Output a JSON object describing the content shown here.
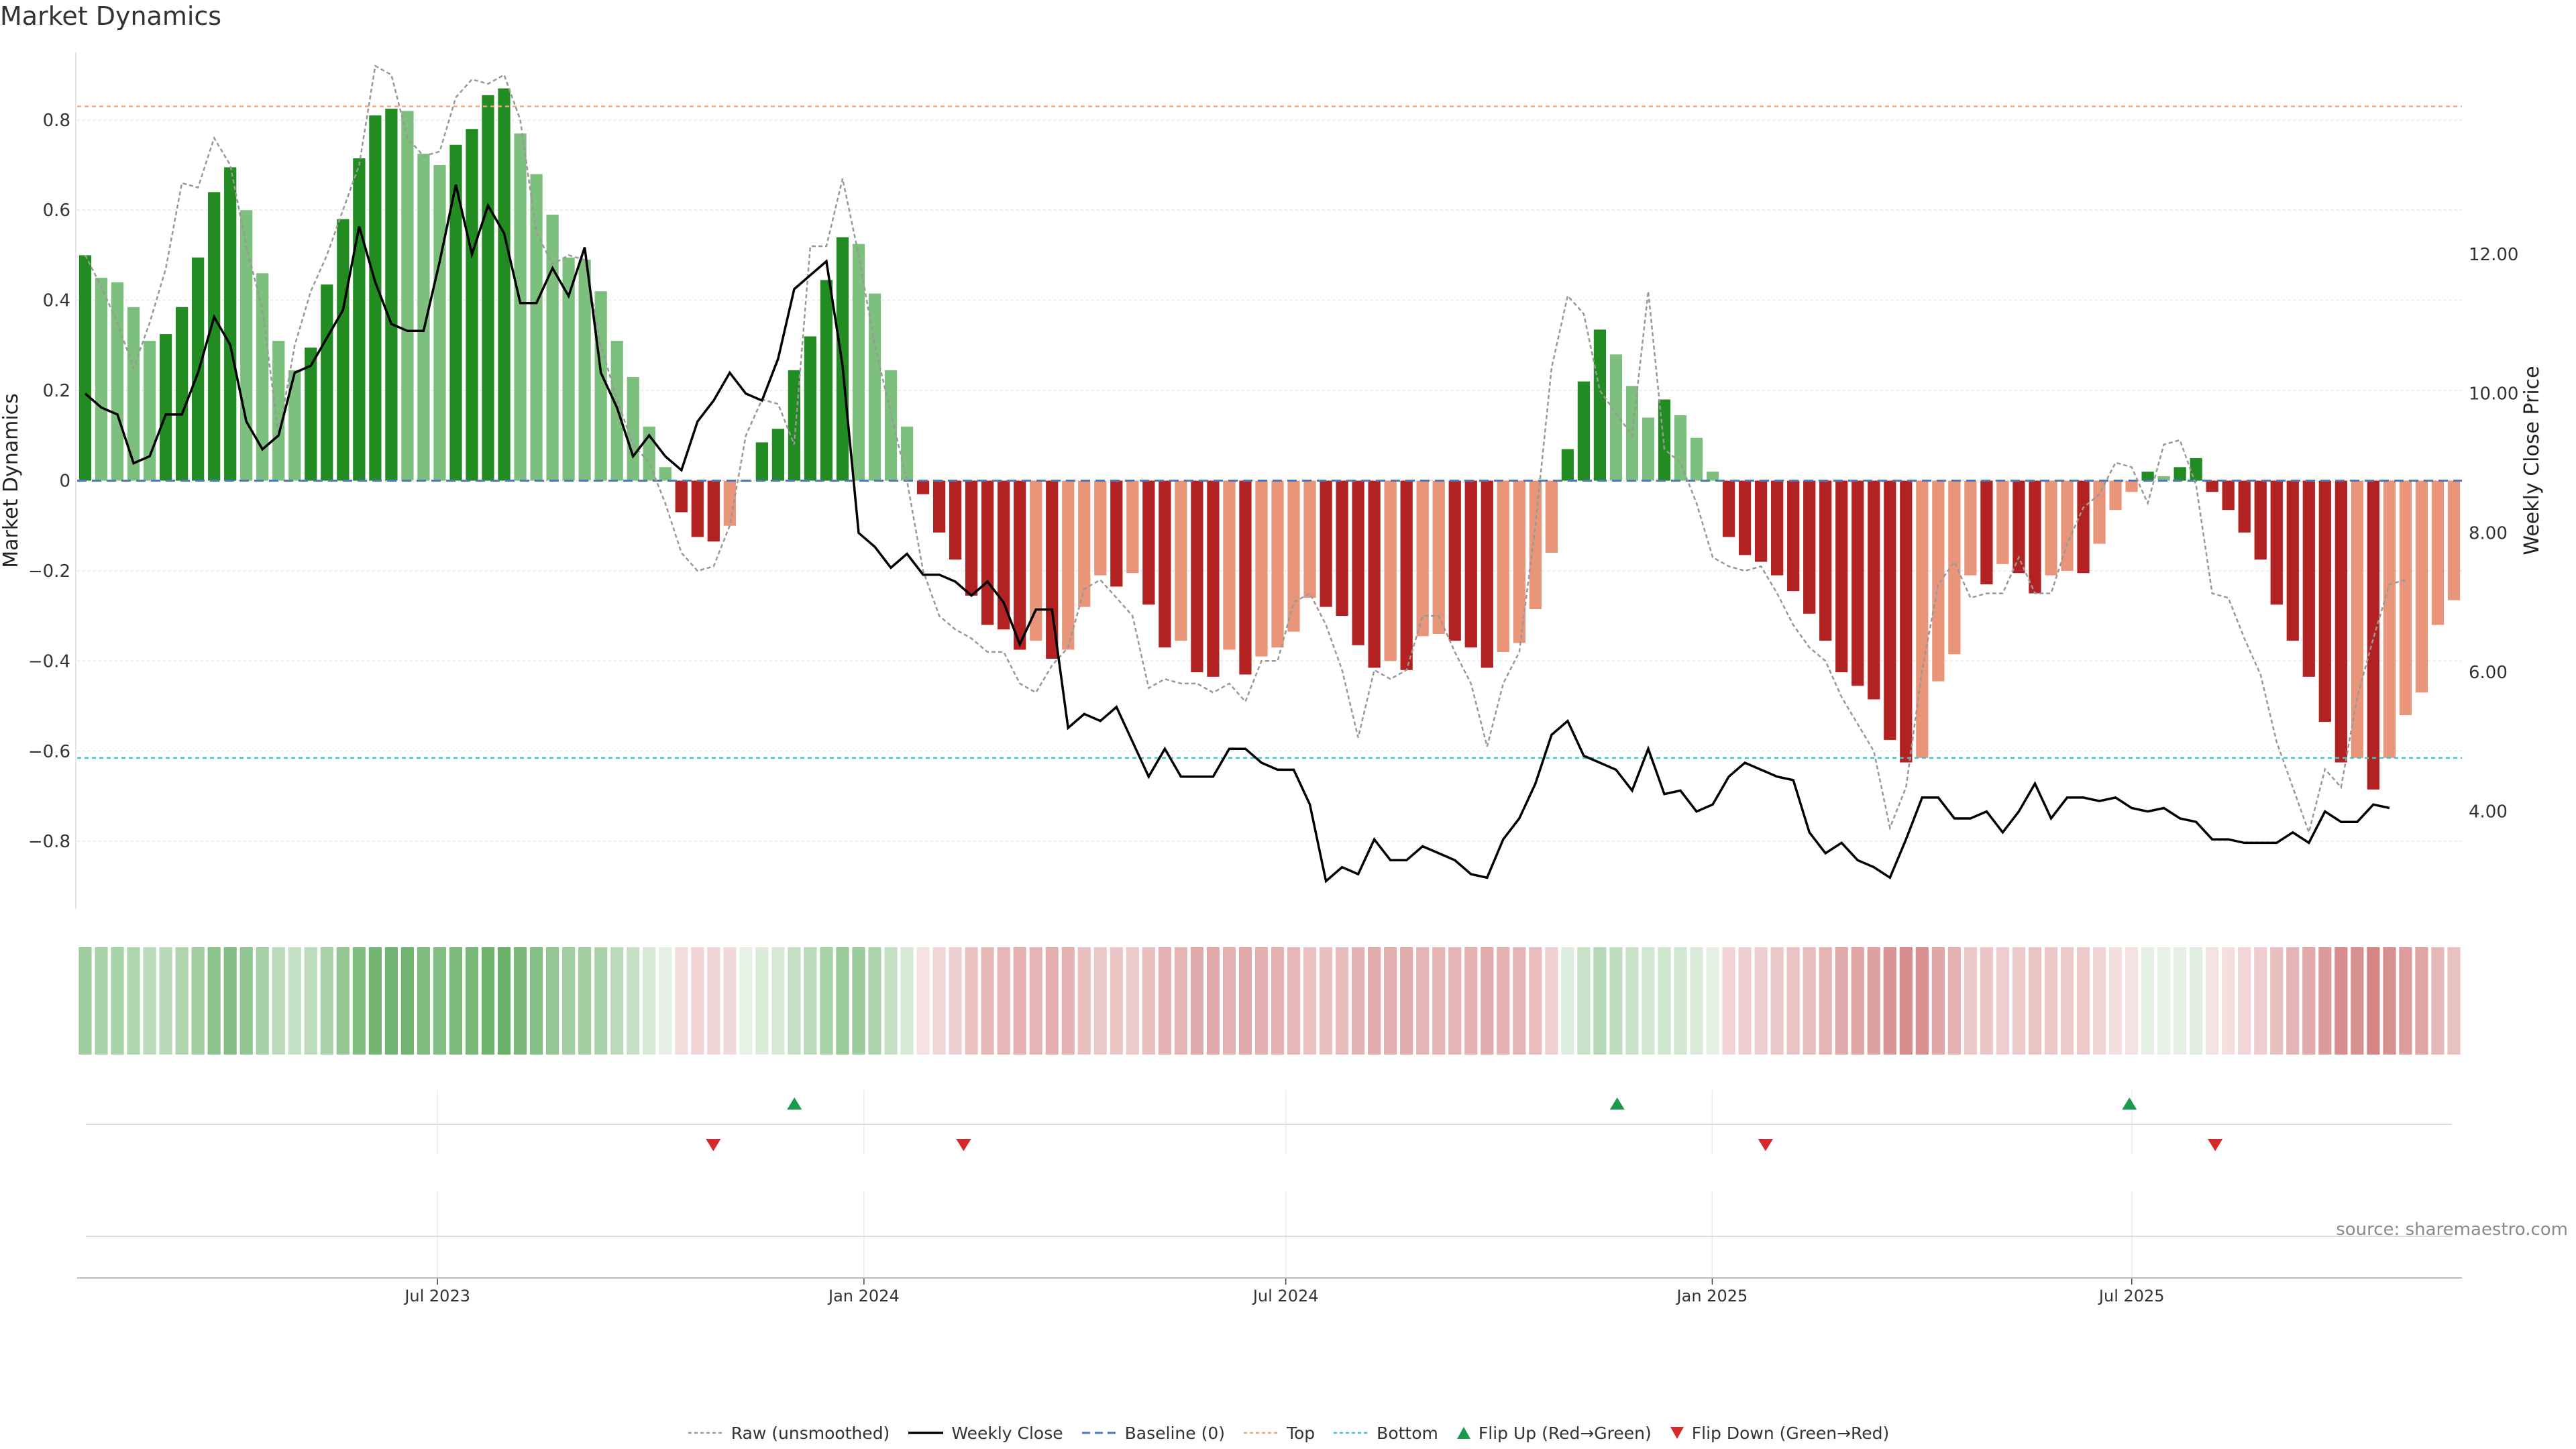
{
  "title": "Market Dynamics",
  "source_note": "source: sharemaestro.com",
  "colors": {
    "strong_green": "#228b22",
    "light_green": "#7dbf7d",
    "strong_red": "#b22222",
    "light_red": "#e8957a",
    "top_line": "#f4a582",
    "bottom_line": "#3cc8d2",
    "baseline": "#4a78c2",
    "raw": "#999999",
    "close": "#000000",
    "flip_up": "#1a9a4a",
    "flip_down": "#d42a2a"
  },
  "legend": [
    {
      "key": "raw",
      "label": "Raw (unsmoothed)"
    },
    {
      "key": "close",
      "label": "Weekly Close"
    },
    {
      "key": "baseline",
      "label": "Baseline (0)"
    },
    {
      "key": "top",
      "label": "Top"
    },
    {
      "key": "bottom",
      "label": "Bottom"
    },
    {
      "key": "flip_up",
      "label": "Flip Up (Red→Green)"
    },
    {
      "key": "flip_down",
      "label": "Flip Down (Green→Red)"
    }
  ],
  "chart_data": {
    "type": "bar",
    "title": "Market Dynamics",
    "ylabel": "Market Dynamics",
    "y2label": "Weekly Close Price",
    "ylim": [
      -0.95,
      0.95
    ],
    "y2lim": [
      2.6,
      14.9
    ],
    "yticks": [
      -0.8,
      -0.6,
      -0.4,
      -0.2,
      0,
      0.2,
      0.4,
      0.6,
      0.8
    ],
    "ytick_labels": [
      "−0.8",
      "−0.6",
      "−0.4",
      "−0.2",
      "0",
      "0.2",
      "0.4",
      "0.6",
      "0.8"
    ],
    "y2ticks": [
      4,
      6,
      8,
      10,
      12
    ],
    "y2tick_labels": [
      "4.00",
      "6.00",
      "8.00",
      "10.00",
      "12.00"
    ],
    "x_start": "2023-01-30",
    "x_end": "2025-11-17",
    "xticks": [
      "2023-07-01",
      "2024-01-01",
      "2024-07-01",
      "2025-01-01",
      "2025-07-01"
    ],
    "xtick_labels": [
      "Jul 2023",
      "Jan 2024",
      "Jul 2024",
      "Jan 2025",
      "Jul 2025"
    ],
    "top_level": 0.83,
    "bottom_level": -0.615,
    "grid": true,
    "legend_position": "bottom",
    "smoothed": [
      0.5,
      0.45,
      0.44,
      0.385,
      0.31,
      0.325,
      0.385,
      0.495,
      0.64,
      0.695,
      0.6,
      0.46,
      0.31,
      0.245,
      0.295,
      0.435,
      0.58,
      0.715,
      0.81,
      0.825,
      0.82,
      0.725,
      0.7,
      0.745,
      0.78,
      0.855,
      0.87,
      0.77,
      0.68,
      0.59,
      0.495,
      0.49,
      0.42,
      0.31,
      0.23,
      0.12,
      0.03,
      -0.07,
      -0.125,
      -0.135,
      -0.1,
      0.0,
      0.085,
      0.115,
      0.245,
      0.32,
      0.445,
      0.54,
      0.525,
      0.415,
      0.245,
      0.12,
      -0.03,
      -0.115,
      -0.175,
      -0.255,
      -0.32,
      -0.33,
      -0.375,
      -0.355,
      -0.395,
      -0.375,
      -0.28,
      -0.21,
      -0.235,
      -0.205,
      -0.275,
      -0.37,
      -0.355,
      -0.425,
      -0.435,
      -0.375,
      -0.43,
      -0.39,
      -0.37,
      -0.335,
      -0.26,
      -0.28,
      -0.3,
      -0.365,
      -0.415,
      -0.4,
      -0.42,
      -0.345,
      -0.34,
      -0.355,
      -0.37,
      -0.415,
      -0.38,
      -0.36,
      -0.285,
      -0.16,
      0.07,
      0.22,
      0.335,
      0.28,
      0.21,
      0.14,
      0.18,
      0.145,
      0.095,
      0.02,
      -0.125,
      -0.165,
      -0.18,
      -0.21,
      -0.245,
      -0.295,
      -0.355,
      -0.425,
      -0.455,
      -0.485,
      -0.575,
      -0.625,
      -0.615,
      -0.445,
      -0.385,
      -0.21,
      -0.23,
      -0.185,
      -0.205,
      -0.25,
      -0.21,
      -0.2,
      -0.205,
      -0.14,
      -0.065,
      -0.025,
      0.02,
      0.01,
      0.03,
      0.05,
      -0.025,
      -0.065,
      -0.115,
      -0.175,
      -0.275,
      -0.355,
      -0.435,
      -0.535,
      -0.625,
      -0.615,
      -0.685,
      -0.615,
      -0.52,
      -0.47,
      -0.32,
      -0.265
    ],
    "raw": [
      0.5,
      0.43,
      0.35,
      0.25,
      0.35,
      0.47,
      0.66,
      0.65,
      0.76,
      0.7,
      0.52,
      0.38,
      0.1,
      0.3,
      0.42,
      0.5,
      0.6,
      0.7,
      0.92,
      0.9,
      0.76,
      0.72,
      0.73,
      0.85,
      0.89,
      0.88,
      0.9,
      0.8,
      0.55,
      0.48,
      0.5,
      0.49,
      0.3,
      0.18,
      0.08,
      0.04,
      -0.05,
      -0.16,
      -0.2,
      -0.19,
      -0.1,
      0.1,
      0.18,
      0.17,
      0.08,
      0.52,
      0.52,
      0.67,
      0.5,
      0.3,
      0.15,
      0.0,
      -0.2,
      -0.3,
      -0.33,
      -0.35,
      -0.38,
      -0.38,
      -0.45,
      -0.47,
      -0.41,
      -0.37,
      -0.24,
      -0.22,
      -0.26,
      -0.3,
      -0.46,
      -0.44,
      -0.45,
      -0.45,
      -0.47,
      -0.45,
      -0.49,
      -0.4,
      -0.4,
      -0.27,
      -0.25,
      -0.32,
      -0.42,
      -0.57,
      -0.42,
      -0.44,
      -0.42,
      -0.3,
      -0.3,
      -0.38,
      -0.45,
      -0.59,
      -0.45,
      -0.38,
      -0.1,
      0.25,
      0.41,
      0.37,
      0.2,
      0.15,
      0.1,
      0.42,
      0.07,
      0.04,
      -0.05,
      -0.17,
      -0.19,
      -0.2,
      -0.19,
      -0.25,
      -0.32,
      -0.37,
      -0.4,
      -0.48,
      -0.54,
      -0.6,
      -0.77,
      -0.68,
      -0.42,
      -0.23,
      -0.18,
      -0.26,
      -0.25,
      -0.25,
      -0.17,
      -0.25,
      -0.25,
      -0.14,
      -0.06,
      -0.03,
      0.04,
      0.03,
      -0.05,
      0.08,
      0.09,
      -0.01,
      -0.25,
      -0.26,
      -0.35,
      -0.43,
      -0.58,
      -0.68,
      -0.78,
      -0.64,
      -0.68,
      -0.48,
      -0.35,
      -0.23,
      -0.22
    ],
    "close": [
      10.0,
      9.8,
      9.7,
      9.0,
      9.1,
      9.7,
      9.7,
      10.3,
      11.1,
      10.7,
      9.6,
      9.2,
      9.4,
      10.3,
      10.4,
      10.8,
      11.2,
      12.4,
      11.6,
      11.0,
      10.9,
      10.9,
      11.9,
      13.0,
      12.0,
      12.7,
      12.3,
      11.3,
      11.3,
      11.8,
      11.4,
      12.1,
      10.3,
      9.8,
      9.1,
      9.4,
      9.1,
      8.9,
      9.6,
      9.9,
      10.3,
      10.0,
      9.9,
      10.5,
      11.5,
      11.7,
      11.9,
      10.4,
      8.0,
      7.8,
      7.5,
      7.7,
      7.4,
      7.4,
      7.3,
      7.1,
      7.3,
      7.0,
      6.4,
      6.9,
      6.9,
      5.2,
      5.4,
      5.3,
      5.5,
      5.0,
      4.5,
      4.9,
      4.5,
      4.5,
      4.5,
      4.9,
      4.9,
      4.7,
      4.6,
      4.6,
      4.1,
      3.0,
      3.2,
      3.1,
      3.6,
      3.3,
      3.3,
      3.5,
      3.4,
      3.3,
      3.1,
      3.05,
      3.6,
      3.9,
      4.4,
      5.1,
      5.3,
      4.8,
      4.7,
      4.6,
      4.3,
      4.9,
      4.25,
      4.3,
      4.0,
      4.1,
      4.5,
      4.7,
      4.6,
      4.5,
      4.45,
      3.7,
      3.4,
      3.55,
      3.3,
      3.2,
      3.05,
      3.6,
      4.2,
      4.2,
      3.9,
      3.9,
      4.0,
      3.7,
      4.0,
      4.4,
      3.9,
      4.2,
      4.2,
      4.15,
      4.2,
      4.05,
      4.0,
      4.05,
      3.9,
      3.85,
      3.6,
      3.6,
      3.55,
      3.55,
      3.55,
      3.7,
      3.55,
      4.0,
      3.85,
      3.85,
      4.1,
      4.05
    ],
    "flip_up_dates": [
      "2023-12-02",
      "2024-11-21",
      "2025-06-30"
    ],
    "flip_down_dates": [
      "2023-10-28",
      "2024-02-13",
      "2025-01-24",
      "2025-08-06"
    ]
  }
}
